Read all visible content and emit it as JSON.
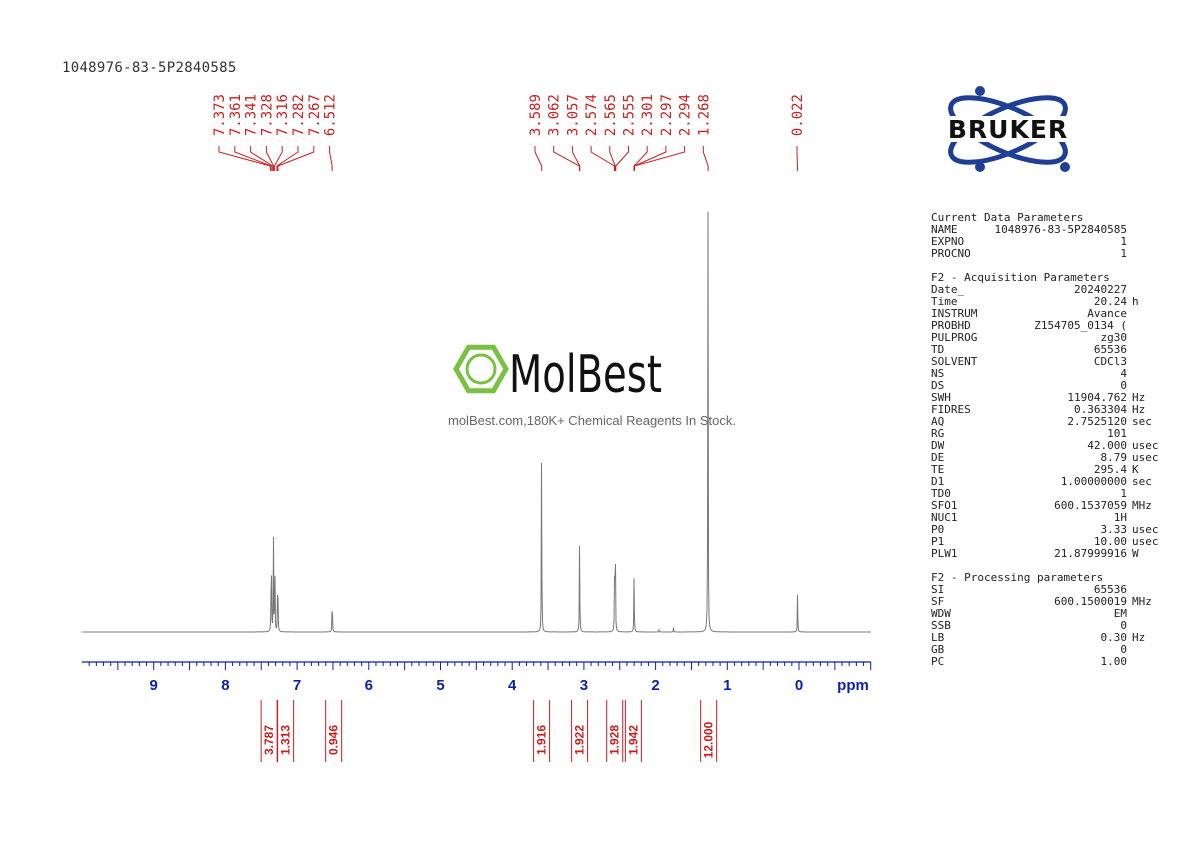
{
  "title": "1048976-83-5P2840585",
  "watermark": {
    "brand": "MolBest",
    "tagline": "molBest.com,180K+ Chemical Reagents In Stock.",
    "accent_color": "#7ac143"
  },
  "logo": {
    "text": "BRUKER",
    "color": "#1f3f95"
  },
  "chart_data": {
    "type": "line",
    "title": "",
    "xlabel": "ppm",
    "xlim": [
      9.9,
      -1.0
    ],
    "x_reversed": true,
    "x_ticks": [
      "9",
      "8",
      "7",
      "6",
      "5",
      "4",
      "3",
      "2",
      "1",
      "0"
    ],
    "peak_labels": [
      "7.373",
      "7.361",
      "7.341",
      "7.328",
      "7.316",
      "7.282",
      "7.267",
      "6.512",
      "3.589",
      "3.062",
      "3.057",
      "2.574",
      "2.565",
      "2.555",
      "2.301",
      "2.297",
      "2.294",
      "1.268",
      "0.022"
    ],
    "peak_positions": [
      7.373,
      7.361,
      7.341,
      7.328,
      7.316,
      7.282,
      7.267,
      6.512,
      3.589,
      3.062,
      3.057,
      2.574,
      2.565,
      2.555,
      2.301,
      2.297,
      2.294,
      1.268,
      0.022
    ],
    "peaks": [
      {
        "x": 7.36,
        "y": 24
      },
      {
        "x": 7.33,
        "y": 22
      },
      {
        "x": 7.31,
        "y": 16
      },
      {
        "x": 7.27,
        "y": 18
      },
      {
        "x": 6.51,
        "y": 10
      },
      {
        "x": 3.59,
        "y": 45
      },
      {
        "x": 3.06,
        "y": 23
      },
      {
        "x": 2.57,
        "y": 25
      },
      {
        "x": 2.56,
        "y": 14
      },
      {
        "x": 2.3,
        "y": 14
      },
      {
        "x": 1.27,
        "y": 100
      },
      {
        "x": 0.02,
        "y": 9
      },
      {
        "x": 1.75,
        "y": 1
      },
      {
        "x": 1.95,
        "y": 0.8
      }
    ],
    "integrals": [
      {
        "x": 7.39,
        "label": "3.787"
      },
      {
        "x": 7.16,
        "label": "1.313"
      },
      {
        "x": 6.49,
        "label": "0.946"
      },
      {
        "x": 3.59,
        "label": "1.916"
      },
      {
        "x": 3.06,
        "label": "1.922"
      },
      {
        "x": 2.57,
        "label": "1.928"
      },
      {
        "x": 2.31,
        "label": "1.942"
      },
      {
        "x": 1.26,
        "label": "12.000"
      }
    ],
    "colors": {
      "spectrum": "#777777",
      "axis": "#0b1fb0",
      "labels": "#c81e1e"
    }
  },
  "parameters": {
    "current": {
      "header": "Current Data Parameters",
      "rows": [
        {
          "name": "NAME",
          "value": "1048976-83-5P2840585",
          "unit": ""
        },
        {
          "name": "EXPNO",
          "value": "1",
          "unit": ""
        },
        {
          "name": "PROCNO",
          "value": "1",
          "unit": ""
        }
      ]
    },
    "acquisition": {
      "header": "F2 - Acquisition Parameters",
      "rows": [
        {
          "name": "Date_",
          "value": "20240227",
          "unit": ""
        },
        {
          "name": "Time",
          "value": "20.24",
          "unit": "h"
        },
        {
          "name": "INSTRUM",
          "value": "Avance",
          "unit": ""
        },
        {
          "name": "PROBHD",
          "value": "Z154705_0134 (",
          "unit": ""
        },
        {
          "name": "PULPROG",
          "value": "zg30",
          "unit": ""
        },
        {
          "name": "TD",
          "value": "65536",
          "unit": ""
        },
        {
          "name": "SOLVENT",
          "value": "CDCl3",
          "unit": ""
        },
        {
          "name": "NS",
          "value": "4",
          "unit": ""
        },
        {
          "name": "DS",
          "value": "0",
          "unit": ""
        },
        {
          "name": "SWH",
          "value": "11904.762",
          "unit": "Hz"
        },
        {
          "name": "FIDRES",
          "value": "0.363304",
          "unit": "Hz"
        },
        {
          "name": "AQ",
          "value": "2.7525120",
          "unit": "sec"
        },
        {
          "name": "RG",
          "value": "101",
          "unit": ""
        },
        {
          "name": "DW",
          "value": "42.000",
          "unit": "usec"
        },
        {
          "name": "DE",
          "value": "8.79",
          "unit": "usec"
        },
        {
          "name": "TE",
          "value": "295.4",
          "unit": "K"
        },
        {
          "name": "D1",
          "value": "1.00000000",
          "unit": "sec"
        },
        {
          "name": "TD0",
          "value": "1",
          "unit": ""
        },
        {
          "name": "SFO1",
          "value": "600.1537059",
          "unit": "MHz"
        },
        {
          "name": "NUC1",
          "value": "1H",
          "unit": ""
        },
        {
          "name": "P0",
          "value": "3.33",
          "unit": "usec"
        },
        {
          "name": "P1",
          "value": "10.00",
          "unit": "usec"
        },
        {
          "name": "PLW1",
          "value": "21.87999916",
          "unit": "W"
        }
      ]
    },
    "processing": {
      "header": "F2 - Processing parameters",
      "rows": [
        {
          "name": "SI",
          "value": "65536",
          "unit": ""
        },
        {
          "name": "SF",
          "value": "600.1500019",
          "unit": "MHz"
        },
        {
          "name": "WDW",
          "value": "EM",
          "unit": ""
        },
        {
          "name": "SSB",
          "value": "0",
          "unit": ""
        },
        {
          "name": "LB",
          "value": "0.30",
          "unit": "Hz"
        },
        {
          "name": "GB",
          "value": "0",
          "unit": ""
        },
        {
          "name": "PC",
          "value": "1.00",
          "unit": ""
        }
      ]
    }
  }
}
